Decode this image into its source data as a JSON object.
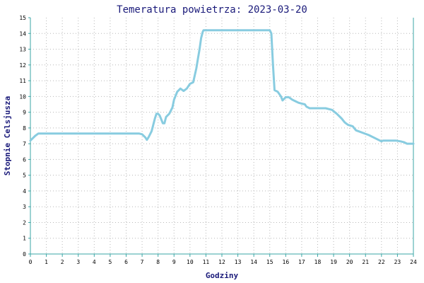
{
  "chart_data": {
    "type": "line",
    "title": "Temeratura powietrza: 2023-03-20",
    "xlabel": "Godziny",
    "ylabel": "Stopnie Celsjusza",
    "xlim": [
      0,
      24
    ],
    "ylim": [
      0,
      15
    ],
    "x_ticks": [
      0,
      1,
      2,
      3,
      4,
      5,
      6,
      7,
      8,
      9,
      10,
      11,
      12,
      13,
      14,
      15,
      16,
      17,
      18,
      19,
      20,
      21,
      22,
      23,
      24
    ],
    "y_ticks": [
      0,
      1,
      2,
      3,
      4,
      5,
      6,
      7,
      8,
      9,
      10,
      11,
      12,
      13,
      14,
      15
    ],
    "grid": true,
    "colors": {
      "line": "#88cce0",
      "axis": "#3aa6a6",
      "grid": "#b8b8b8",
      "text": "#1a1a7a"
    },
    "series": [
      {
        "x": [
          0,
          0.3,
          0.5,
          1,
          2,
          3,
          4,
          5,
          6,
          6.8,
          7.0,
          7.2,
          7.3,
          7.4,
          7.6,
          7.7,
          7.8,
          7.9,
          8.0,
          8.1,
          8.3,
          8.4,
          8.5,
          8.6,
          8.7,
          8.9,
          9.0,
          9.2,
          9.4,
          9.6,
          9.8,
          10.0,
          10.2,
          10.4,
          10.5,
          10.6,
          10.7,
          10.8,
          10.85,
          10.9,
          11.0,
          12,
          13,
          14,
          15.0,
          15.1,
          15.2,
          15.3,
          15.5,
          15.7,
          15.8,
          16.0,
          16.2,
          16.4,
          16.6,
          16.8,
          17.0,
          17.2,
          17.3,
          17.5,
          17.8,
          18.5,
          18.9,
          19.2,
          19.5,
          19.7,
          19.9,
          20.2,
          20.4,
          20.8,
          21.2,
          21.6,
          21.9,
          22.0,
          22.1,
          22.3,
          22.6,
          22.9,
          23.2,
          23.4,
          23.6,
          24.0
        ],
        "y": [
          7.2,
          7.5,
          7.65,
          7.65,
          7.65,
          7.65,
          7.65,
          7.65,
          7.65,
          7.65,
          7.6,
          7.4,
          7.25,
          7.4,
          7.8,
          8.2,
          8.6,
          8.9,
          8.9,
          8.8,
          8.3,
          8.3,
          8.7,
          8.8,
          8.9,
          9.3,
          9.8,
          10.3,
          10.5,
          10.35,
          10.5,
          10.8,
          10.9,
          11.8,
          12.4,
          13.0,
          13.7,
          14.1,
          14.2,
          14.2,
          14.2,
          14.2,
          14.2,
          14.2,
          14.2,
          14.0,
          12.0,
          10.4,
          10.3,
          10.0,
          9.75,
          9.95,
          9.95,
          9.8,
          9.7,
          9.6,
          9.55,
          9.5,
          9.35,
          9.25,
          9.25,
          9.25,
          9.15,
          8.9,
          8.6,
          8.35,
          8.2,
          8.1,
          7.85,
          7.7,
          7.55,
          7.35,
          7.2,
          7.15,
          7.2,
          7.2,
          7.2,
          7.2,
          7.15,
          7.1,
          7.0,
          7.0
        ]
      }
    ]
  }
}
